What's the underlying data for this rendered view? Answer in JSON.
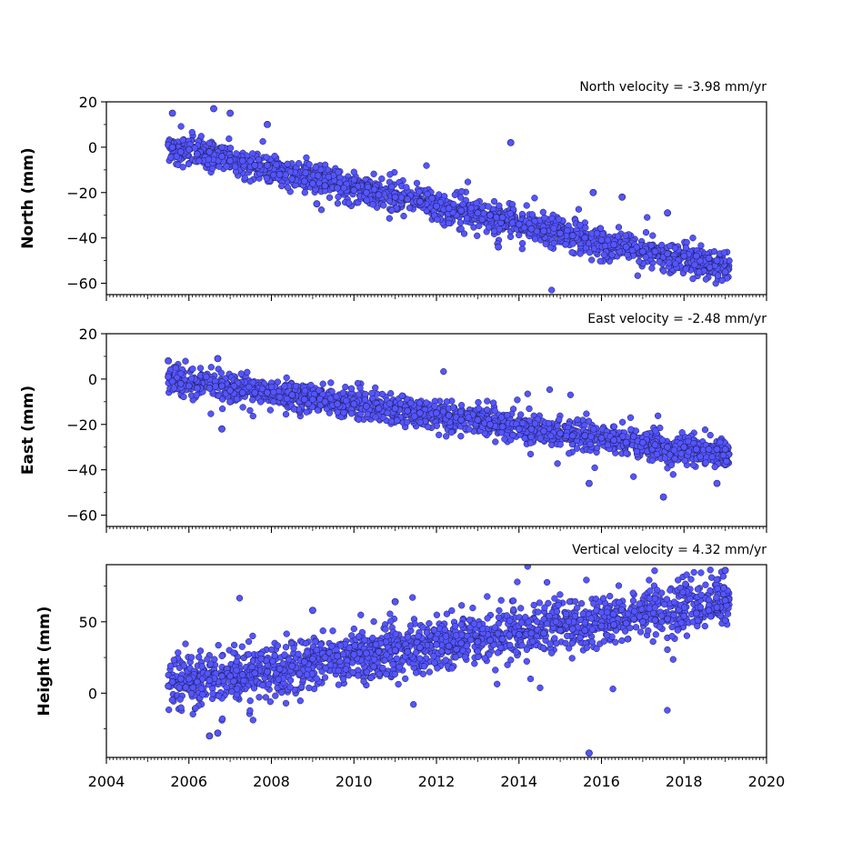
{
  "colors": {
    "marker_fill": "#5555ff",
    "marker_edge": "#1a1a55",
    "axes": "#000000",
    "background": "#ffffff"
  },
  "chart_data": [
    {
      "type": "scatter",
      "title": "North velocity = -3.98 mm/yr",
      "ylabel": "North (mm)",
      "xlim": [
        2004,
        2020
      ],
      "ylim": [
        -65,
        20
      ],
      "yticks": [
        20,
        0,
        -20,
        -40,
        -60
      ],
      "yticklabels": [
        "20",
        "0",
        "−20",
        "−40",
        "−60"
      ],
      "trend": {
        "start": [
          2005.5,
          0
        ],
        "velocity_mm_per_yr": -3.98
      },
      "series": [
        {
          "x": [
            2005.5,
            2005.6,
            2005.8,
            2006.0,
            2006.2,
            2006.5,
            2006.8,
            2007.0,
            2007.3,
            2007.6,
            2007.9,
            2008.2,
            2008.5,
            2008.8,
            2009.0,
            2009.3,
            2009.6,
            2010.0,
            2010.3,
            2010.6,
            2011.0,
            2011.3,
            2011.6,
            2012.0,
            2012.3,
            2012.6,
            2013.0,
            2013.3,
            2013.6,
            2014.0,
            2014.3,
            2014.6,
            2015.0,
            2015.3,
            2015.6,
            2016.0,
            2016.3,
            2016.6,
            2017.0,
            2017.3,
            2017.6,
            2018.0,
            2018.3,
            2018.6,
            2018.8,
            2019.0,
            2005.6,
            2006.6,
            2007.0,
            2007.9,
            2013.8,
            2015.8,
            2016.5,
            2017.6,
            2013.5,
            2009.1
          ],
          "y": [
            1,
            0,
            -2,
            -1,
            -3,
            -2,
            -4,
            -6,
            -6,
            -8,
            -8,
            -12,
            -14,
            -15,
            -16,
            -17,
            -18,
            -19,
            -20,
            -21,
            -22,
            -23,
            -24,
            -26,
            -27,
            -28,
            -29,
            -30,
            -31,
            -34,
            -36,
            -37,
            -38,
            -39,
            -40,
            -41,
            -43,
            -44,
            -46,
            -46,
            -47,
            -48,
            -48,
            -49,
            -50,
            -55,
            15,
            17,
            15,
            10,
            2,
            -20,
            -22,
            -29,
            -44,
            -25
          ]
        }
      ]
    },
    {
      "type": "scatter",
      "title": "East velocity = -2.48 mm/yr",
      "ylabel": "East (mm)",
      "xlim": [
        2004,
        2020
      ],
      "ylim": [
        -65,
        20
      ],
      "yticks": [
        20,
        0,
        -20,
        -40,
        -60
      ],
      "yticklabels": [
        "20",
        "0",
        "−20",
        "−40",
        "−60"
      ],
      "trend": {
        "start": [
          2005.5,
          0
        ],
        "velocity_mm_per_yr": -2.48
      },
      "series": [
        {
          "x": [
            2005.5,
            2005.6,
            2005.8,
            2006.0,
            2006.2,
            2006.5,
            2006.8,
            2007.0,
            2007.3,
            2007.6,
            2007.9,
            2008.2,
            2008.5,
            2008.8,
            2009.0,
            2009.3,
            2009.6,
            2010.0,
            2010.3,
            2010.6,
            2011.0,
            2011.3,
            2011.6,
            2012.0,
            2012.3,
            2012.6,
            2013.0,
            2013.3,
            2013.6,
            2014.0,
            2014.3,
            2014.6,
            2015.0,
            2015.3,
            2015.6,
            2016.0,
            2016.3,
            2016.6,
            2017.0,
            2017.3,
            2017.6,
            2018.0,
            2018.3,
            2018.6,
            2018.8,
            2019.0,
            2005.5,
            2006.7,
            2006.8,
            2015.7,
            2017.5,
            2018.8
          ],
          "y": [
            1,
            -1,
            -2,
            -3,
            -4,
            -4,
            -3,
            -5,
            -6,
            -6,
            -6,
            -8,
            -7,
            -9,
            -9,
            -10,
            -11,
            -11,
            -12,
            -13,
            -13,
            -14,
            -15,
            -15,
            -16,
            -18,
            -18,
            -20,
            -21,
            -22,
            -22,
            -23,
            -24,
            -25,
            -25,
            -26,
            -27,
            -28,
            -28,
            -29,
            -30,
            -30,
            -31,
            -31,
            -31,
            -31,
            8,
            9,
            -22,
            -46,
            -52,
            -46
          ]
        }
      ]
    },
    {
      "type": "scatter",
      "title": "Vertical velocity = 4.32 mm/yr",
      "ylabel": "Height (mm)",
      "xlim": [
        2004,
        2020
      ],
      "xticks": [
        2004,
        2006,
        2008,
        2010,
        2012,
        2014,
        2016,
        2018,
        2020
      ],
      "ylim": [
        -45,
        90
      ],
      "yticks": [
        50,
        0
      ],
      "yticklabels": [
        "50",
        "0"
      ],
      "trend": {
        "start": [
          2005.5,
          6
        ],
        "velocity_mm_per_yr": 4.32
      },
      "series": [
        {
          "x": [
            2005.5,
            2005.6,
            2005.8,
            2006.0,
            2006.2,
            2006.5,
            2006.8,
            2007.0,
            2007.3,
            2007.6,
            2007.9,
            2008.2,
            2008.5,
            2008.8,
            2009.0,
            2009.3,
            2009.6,
            2010.0,
            2010.3,
            2010.6,
            2011.0,
            2011.3,
            2011.6,
            2012.0,
            2012.3,
            2012.6,
            2013.0,
            2013.3,
            2013.6,
            2014.0,
            2014.3,
            2014.6,
            2015.0,
            2015.3,
            2015.6,
            2016.0,
            2016.3,
            2016.6,
            2017.0,
            2017.3,
            2017.6,
            2018.0,
            2018.3,
            2018.6,
            2018.8,
            2019.0,
            2019.0,
            2015.7,
            2009.0,
            2011.0,
            2006.5,
            2006.7
          ],
          "y": [
            5,
            8,
            10,
            10,
            8,
            9,
            12,
            12,
            13,
            14,
            15,
            17,
            19,
            22,
            24,
            25,
            26,
            27,
            28,
            29,
            30,
            29,
            32,
            34,
            33,
            35,
            36,
            37,
            38,
            41,
            42,
            42,
            44,
            45,
            44,
            47,
            48,
            49,
            50,
            51,
            52,
            54,
            56,
            58,
            60,
            65,
            86,
            -42,
            58,
            64,
            -30,
            -28
          ]
        }
      ]
    }
  ]
}
